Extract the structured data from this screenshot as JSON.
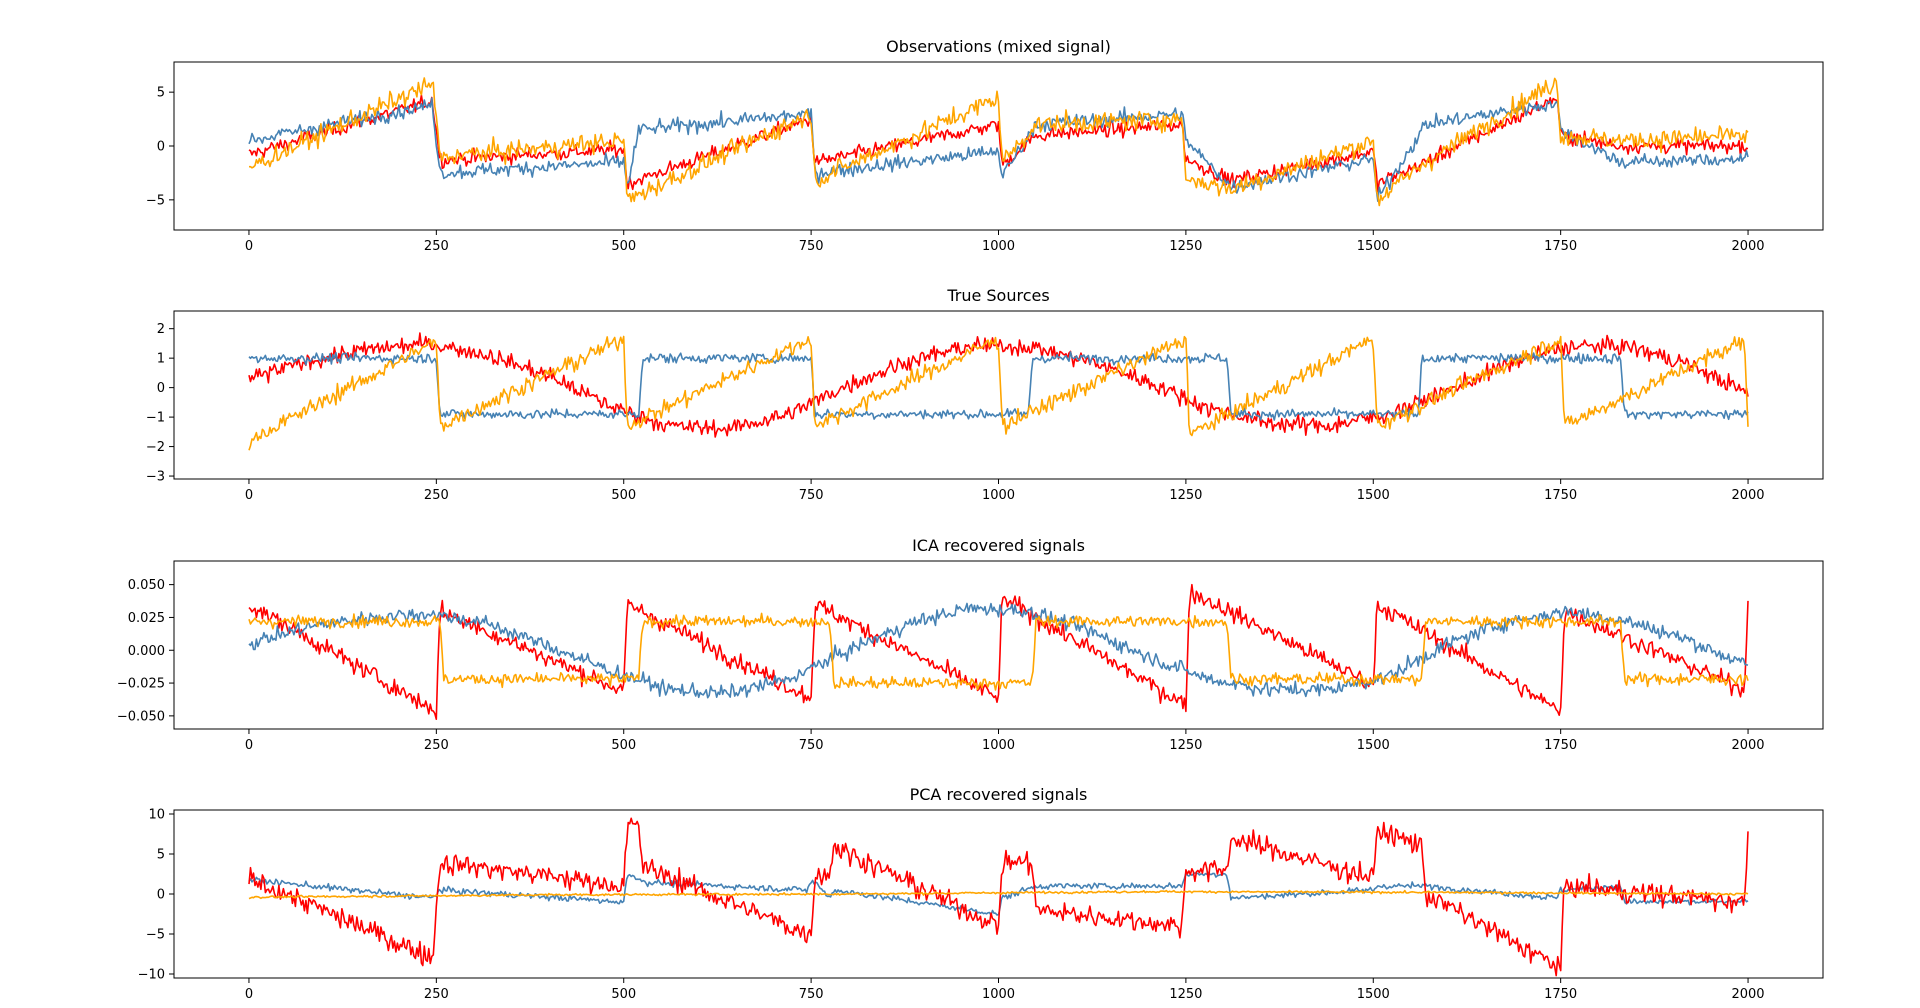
{
  "chart_data": [
    {
      "type": "line",
      "title": "Observations (mixed signal)",
      "xlim": [
        -100,
        2100
      ],
      "ylim": [
        -7.8,
        7.8
      ],
      "xticks": [
        0,
        250,
        500,
        750,
        1000,
        1250,
        1500,
        1750,
        2000
      ],
      "yticks": [
        -5,
        0,
        5
      ],
      "series": [
        {
          "color": "#ff0000",
          "noise": 0.6,
          "x": [
            0,
            245,
            255,
            500,
            505,
            750,
            755,
            1000,
            1005,
            1050,
            1245,
            1250,
            1310,
            1500,
            1505,
            1570,
            1745,
            1750,
            1830,
            2000
          ],
          "values": [
            -0.8,
            4.2,
            -1.3,
            -0.3,
            -3.5,
            2.5,
            -1.5,
            2.0,
            -1.8,
            1.0,
            2.0,
            -1.2,
            -3.2,
            -0.5,
            -3.5,
            -1.5,
            4.5,
            1.0,
            0.0,
            0.0
          ]
        },
        {
          "color": "#4682b4",
          "noise": 0.6,
          "x": [
            0,
            245,
            255,
            500,
            505,
            520,
            750,
            755,
            1000,
            1005,
            1050,
            1245,
            1250,
            1310,
            1500,
            1505,
            1570,
            1745,
            1750,
            1830,
            2000
          ],
          "values": [
            0.5,
            3.8,
            -2.5,
            -1.5,
            -3.8,
            1.5,
            3.0,
            -2.5,
            -0.5,
            -2.8,
            2.0,
            3.0,
            0.5,
            -3.8,
            -1.2,
            -5.0,
            2.0,
            4.0,
            1.5,
            -1.5,
            -1.2
          ]
        },
        {
          "color": "#ffa500",
          "noise": 0.8,
          "x": [
            0,
            245,
            255,
            500,
            505,
            750,
            755,
            1000,
            1005,
            1050,
            1245,
            1250,
            1310,
            1500,
            1505,
            1570,
            1745,
            1750,
            1830,
            2000
          ],
          "values": [
            -2.0,
            5.8,
            -1.0,
            0.5,
            -5.0,
            3.0,
            -3.2,
            4.5,
            -1.5,
            2.0,
            2.5,
            -3.0,
            -4.0,
            0.5,
            -5.0,
            -1.5,
            6.0,
            1.0,
            0.5,
            1.0
          ]
        }
      ]
    },
    {
      "type": "line",
      "title": "True Sources",
      "xlim": [
        -100,
        2100
      ],
      "ylim": [
        -3.1,
        2.6
      ],
      "xticks": [
        0,
        250,
        500,
        750,
        1000,
        1250,
        1500,
        1750,
        2000
      ],
      "yticks": [
        -3,
        -2,
        -1,
        0,
        1,
        2
      ],
      "series": [
        {
          "color": "#ff0000",
          "noise": 0.25,
          "x": [
            0,
            80,
            160,
            240,
            320,
            400,
            480,
            560,
            640,
            720,
            800,
            880,
            960,
            1040,
            1120,
            1200,
            1280,
            1360,
            1440,
            1520,
            1600,
            1680,
            1760,
            1840,
            1920,
            2000
          ],
          "values": [
            0.3,
            0.9,
            1.3,
            1.5,
            1.1,
            0.4,
            -0.6,
            -1.3,
            -1.4,
            -0.9,
            0.1,
            0.9,
            1.4,
            1.4,
            0.9,
            0.2,
            -0.7,
            -1.2,
            -1.3,
            -0.9,
            -0.1,
            0.8,
            1.4,
            1.4,
            0.8,
            -0.2
          ]
        },
        {
          "color": "#4682b4",
          "noise": 0.15,
          "x": [
            0,
            250,
            255,
            500,
            505,
            520,
            525,
            750,
            755,
            775,
            780,
            1040,
            1045,
            1050,
            1055,
            1305,
            1310,
            1560,
            1565,
            1830,
            1835,
            2000
          ],
          "values": [
            1.0,
            1.0,
            -0.9,
            -0.9,
            -0.9,
            -0.9,
            1.0,
            1.0,
            -0.9,
            -0.9,
            -0.9,
            -0.9,
            1.0,
            1.0,
            1.0,
            1.0,
            -0.9,
            -0.9,
            1.0,
            1.0,
            -0.9,
            -0.9
          ]
        },
        {
          "color": "#ffa500",
          "noise": 0.25,
          "x": [
            0,
            245,
            250,
            255,
            495,
            500,
            505,
            745,
            750,
            755,
            995,
            1000,
            1005,
            1245,
            1250,
            1255,
            1495,
            1500,
            1505,
            1745,
            1750,
            1755,
            1995,
            2000
          ],
          "values": [
            -1.8,
            1.5,
            1.5,
            -1.3,
            1.6,
            1.6,
            -1.3,
            1.6,
            1.6,
            -1.3,
            1.6,
            1.6,
            -1.3,
            1.6,
            1.6,
            -1.6,
            1.6,
            1.6,
            -1.3,
            1.6,
            1.6,
            -1.3,
            1.6,
            -1.3
          ]
        }
      ]
    },
    {
      "type": "line",
      "title": "ICA recovered signals",
      "xlim": [
        -100,
        2100
      ],
      "ylim": [
        -0.06,
        0.068
      ],
      "xticks": [
        0,
        250,
        500,
        750,
        1000,
        1250,
        1500,
        1750,
        2000
      ],
      "yticks": [
        -0.05,
        -0.025,
        0.0,
        0.025,
        0.05
      ],
      "series": [
        {
          "color": "#ff0000",
          "noise": 0.006,
          "x": [
            0,
            245,
            250,
            255,
            495,
            500,
            505,
            745,
            750,
            755,
            995,
            1000,
            1005,
            1245,
            1250,
            1255,
            1495,
            1500,
            1505,
            1745,
            1750,
            1755,
            1995,
            2000
          ],
          "values": [
            0.035,
            -0.045,
            -0.045,
            0.03,
            -0.03,
            -0.03,
            0.035,
            -0.035,
            -0.035,
            0.035,
            -0.035,
            -0.035,
            0.04,
            -0.04,
            -0.04,
            0.045,
            -0.025,
            -0.025,
            0.035,
            -0.045,
            -0.045,
            0.03,
            -0.03,
            0.035
          ]
        },
        {
          "color": "#4682b4",
          "noise": 0.005,
          "x": [
            0,
            80,
            160,
            240,
            320,
            400,
            480,
            560,
            640,
            720,
            800,
            880,
            960,
            1040,
            1120,
            1200,
            1280,
            1360,
            1440,
            1520,
            1600,
            1680,
            1760,
            1840,
            1920,
            2000
          ],
          "values": [
            0.005,
            0.018,
            0.025,
            0.028,
            0.02,
            0.003,
            -0.015,
            -0.03,
            -0.033,
            -0.022,
            0.0,
            0.02,
            0.032,
            0.03,
            0.015,
            -0.005,
            -0.022,
            -0.03,
            -0.03,
            -0.02,
            0.005,
            0.022,
            0.03,
            0.022,
            0.008,
            -0.012
          ]
        },
        {
          "color": "#ffa500",
          "noise": 0.004,
          "x": [
            0,
            255,
            260,
            520,
            525,
            775,
            780,
            1045,
            1050,
            1305,
            1310,
            1565,
            1570,
            1830,
            1835,
            2000
          ],
          "values": [
            0.022,
            0.022,
            -0.022,
            -0.022,
            0.022,
            0.022,
            -0.025,
            -0.025,
            0.022,
            0.022,
            -0.022,
            -0.022,
            0.022,
            0.022,
            -0.022,
            -0.022
          ]
        }
      ]
    },
    {
      "type": "line",
      "title": "PCA recovered signals",
      "xlim": [
        -100,
        2100
      ],
      "ylim": [
        -10.5,
        10.5
      ],
      "xticks": [
        0,
        250,
        500,
        750,
        1000,
        1250,
        1500,
        1750,
        2000
      ],
      "yticks": [
        -10,
        -5,
        0,
        5,
        10
      ],
      "series": [
        {
          "color": "#4682b4",
          "noise": 0.35,
          "x": [
            0,
            245,
            255,
            500,
            505,
            520,
            525,
            745,
            750,
            755,
            775,
            780,
            1000,
            1005,
            1050,
            1245,
            1250,
            1305,
            1310,
            1500,
            1505,
            1570,
            1745,
            1750,
            1830,
            1835,
            2000
          ],
          "values": [
            1.8,
            -0.5,
            0.5,
            -1.0,
            2.5,
            2.0,
            1.5,
            0.5,
            1.5,
            1.5,
            -0.5,
            0.5,
            -2.5,
            -0.5,
            1.0,
            1.0,
            2.5,
            2.5,
            -0.5,
            0.5,
            1.0,
            1.0,
            -0.5,
            0.5,
            1.0,
            -1.0,
            -1.0
          ]
        },
        {
          "color": "#ff0000",
          "noise": 1.2,
          "x": [
            0,
            245,
            255,
            500,
            505,
            520,
            525,
            745,
            750,
            755,
            775,
            780,
            1000,
            1005,
            1045,
            1050,
            1245,
            1250,
            1305,
            1310,
            1500,
            1505,
            1565,
            1570,
            1745,
            1750,
            1755,
            1995,
            2000
          ],
          "values": [
            2.0,
            -8.0,
            4.0,
            1.0,
            8.5,
            8.5,
            3.5,
            -5.0,
            -5.0,
            2.5,
            2.5,
            6.0,
            -4.0,
            4.0,
            4.0,
            -2.0,
            -4.0,
            3.0,
            3.0,
            7.0,
            2.0,
            8.0,
            6.0,
            0.0,
            -9.0,
            -9.0,
            1.0,
            -1.0,
            7.0
          ]
        },
        {
          "color": "#ffa500",
          "noise": 0.12,
          "x": [
            0,
            400,
            800,
            1200,
            1600,
            2000
          ],
          "values": [
            -0.4,
            -0.1,
            0.0,
            0.3,
            0.2,
            0.0
          ]
        }
      ]
    }
  ]
}
